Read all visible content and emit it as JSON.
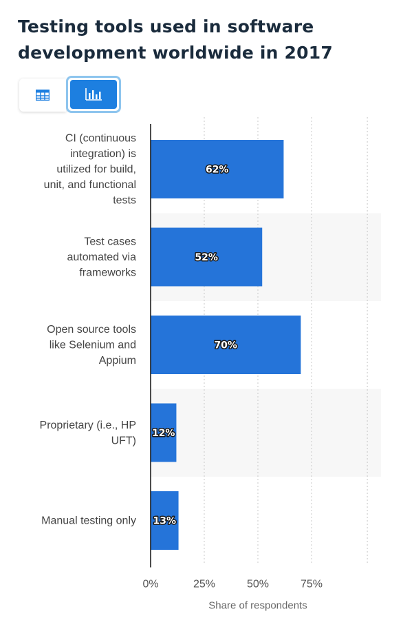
{
  "title": "Testing tools used in software development worldwide in 2017",
  "view_toggle": {
    "table_icon": "table-grid-icon",
    "chart_icon": "bar-chart-icon",
    "active": "chart"
  },
  "colors": {
    "bar": "#2574d9",
    "active_button": "#1d7fe0",
    "title": "#1a2b3c"
  },
  "chart_data": {
    "type": "bar",
    "orientation": "horizontal",
    "categories": [
      "CI (continuous integration) is utilized for build, unit, and functional tests",
      "Test cases automated via frameworks",
      "Open source tools like Selenium and Appium",
      "Proprietary (i.e., HP UFT)",
      "Manual testing only"
    ],
    "category_lines": [
      [
        "CI (continuous",
        "integration) is",
        "utilized for build,",
        "unit, and functional",
        "tests"
      ],
      [
        "Test cases",
        "automated via",
        "frameworks"
      ],
      [
        "Open source tools",
        "like Selenium and",
        "Appium"
      ],
      [
        "Proprietary (i.e., HP",
        "UFT)"
      ],
      [
        "Manual testing only"
      ]
    ],
    "values": [
      62,
      52,
      70,
      12,
      13
    ],
    "data_labels": [
      "62%",
      "52%",
      "70%",
      "12%",
      "13%"
    ],
    "x_ticks": [
      0,
      25,
      50,
      75
    ],
    "x_tick_labels": [
      "0%",
      "25%",
      "50%",
      "75%"
    ],
    "xlim": [
      0,
      101
    ],
    "xlabel": "Share of respondents",
    "ylabel": "",
    "grid": "vertical dashed",
    "legend": "none"
  }
}
